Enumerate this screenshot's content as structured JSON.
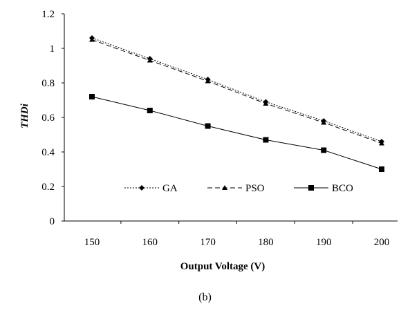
{
  "chart_data": {
    "type": "line",
    "title": "",
    "xlabel": "Output Voltage (V)",
    "ylabel": "THDi",
    "x": [
      150,
      160,
      170,
      180,
      190,
      200
    ],
    "xticks": [
      "150",
      "160",
      "170",
      "180",
      "190",
      "200"
    ],
    "yticks": [
      "0",
      "0.2",
      "0.4",
      "0.6",
      "0.8",
      "1",
      "1.2"
    ],
    "ylim": [
      0,
      1.2
    ],
    "grid": false,
    "legend_position": "bottom-inside",
    "series": [
      {
        "name": "GA",
        "marker": "diamond",
        "dash": "dotted",
        "values": [
          1.06,
          0.94,
          0.82,
          0.69,
          0.58,
          0.46
        ]
      },
      {
        "name": "PSO",
        "marker": "triangle",
        "dash": "dashed",
        "values": [
          1.05,
          0.93,
          0.81,
          0.68,
          0.57,
          0.45
        ]
      },
      {
        "name": "BCO",
        "marker": "square",
        "dash": "solid",
        "values": [
          0.72,
          0.64,
          0.55,
          0.47,
          0.41,
          0.3
        ]
      }
    ]
  },
  "caption": "(b)"
}
